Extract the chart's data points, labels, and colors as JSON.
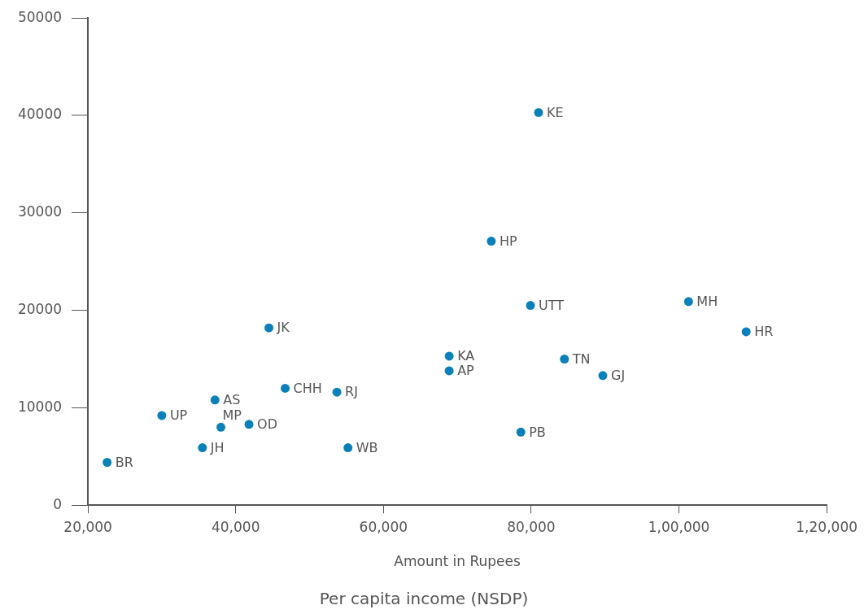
{
  "chart_data": {
    "type": "scatter",
    "title": "Per capita income (NSDP)",
    "xlabel": "Amount in Rupees",
    "x": [
      22600,
      30000,
      35500,
      37200,
      38000,
      41800,
      44500,
      46700,
      53700,
      55200,
      68900,
      68900,
      74600,
      81000,
      79900,
      78600,
      84500,
      89700,
      101300,
      109100
    ],
    "series": [
      {
        "color": "#0a80b8",
        "values": [
          4400,
          9200,
          5900,
          10800,
          8000,
          8300,
          18200,
          12000,
          11600,
          5900,
          15300,
          13800,
          27100,
          40300,
          20500,
          7500,
          15000,
          13300,
          20900,
          17800
        ]
      }
    ],
    "annotations": [
      {
        "text": "BR",
        "x": 22600,
        "y": 4400
      },
      {
        "text": "UP",
        "x": 30000,
        "y": 9200
      },
      {
        "text": "JH",
        "x": 35500,
        "y": 5900
      },
      {
        "text": "AS",
        "x": 37200,
        "y": 10800
      },
      {
        "text": "MP",
        "x": 38000,
        "y": 8000
      },
      {
        "text": "OD",
        "x": 41800,
        "y": 8300
      },
      {
        "text": "JK",
        "x": 44500,
        "y": 18200
      },
      {
        "text": "CHH",
        "x": 46700,
        "y": 12000
      },
      {
        "text": "RJ",
        "x": 53700,
        "y": 11600
      },
      {
        "text": "WB",
        "x": 55200,
        "y": 5900
      },
      {
        "text": "KA",
        "x": 68900,
        "y": 15300
      },
      {
        "text": "AP",
        "x": 68900,
        "y": 13800
      },
      {
        "text": "HP",
        "x": 74600,
        "y": 27100
      },
      {
        "text": "KE",
        "x": 81000,
        "y": 40300
      },
      {
        "text": "UTT",
        "x": 79900,
        "y": 20500
      },
      {
        "text": "PB",
        "x": 78600,
        "y": 7500
      },
      {
        "text": "TN",
        "x": 84500,
        "y": 15000
      },
      {
        "text": "GJ",
        "x": 89700,
        "y": 13300
      },
      {
        "text": "MH",
        "x": 101300,
        "y": 20900
      },
      {
        "text": "HR",
        "x": 109100,
        "y": 17800
      }
    ],
    "xlim": [
      20000,
      120000
    ],
    "xticks": [
      {
        "value": 20000,
        "label": "20,000"
      },
      {
        "value": 40000,
        "label": "40,000"
      },
      {
        "value": 60000,
        "label": "60,000"
      },
      {
        "value": 80000,
        "label": "80,000"
      },
      {
        "value": 100000,
        "label": "1,00,000"
      },
      {
        "value": 120000,
        "label": "1,20,000"
      }
    ],
    "ylim": [
      0,
      50000
    ],
    "yticks": [
      0,
      10000,
      20000,
      30000,
      40000,
      50000
    ],
    "grid": false,
    "legend": false,
    "marker": "circle"
  }
}
